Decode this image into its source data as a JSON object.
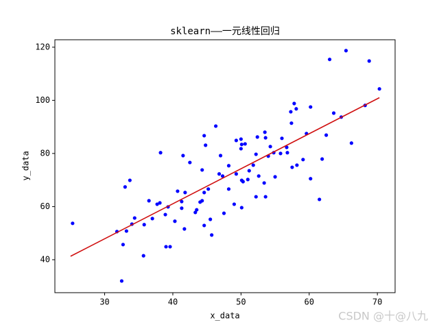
{
  "chart_data": {
    "type": "scatter",
    "title": "sklearn——一元线性回归",
    "x_label": "x_data",
    "y_label": "y_data",
    "xlim": [
      22.7,
      72.6
    ],
    "ylim": [
      27.6,
      122.8
    ],
    "xticks": [
      30,
      40,
      50,
      60,
      70
    ],
    "yticks": [
      40,
      60,
      80,
      100,
      120
    ],
    "color": "#0000ff",
    "x": [
      25.3,
      31.8,
      32.5,
      32.7,
      33,
      33.2,
      33.7,
      34,
      34.4,
      35.7,
      35.8,
      36.5,
      37,
      37.7,
      38.1,
      38.2,
      38.9,
      39,
      39.6,
      39.3,
      40.3,
      40.7,
      41.3,
      41.3,
      41.5,
      41.7,
      41.8,
      42.5,
      43.3,
      43.5,
      44,
      44.3,
      44.3,
      44.6,
      44.6,
      44.8,
      44.6,
      45.2,
      45.5,
      45.7,
      46.3,
      46.8,
      47,
      47.3,
      47.5,
      48.2,
      48.2,
      49,
      49.3,
      49.3,
      50,
      50,
      50.1,
      50.1,
      50.3,
      50.1,
      50.6,
      51,
      51.2,
      51.8,
      52.2,
      52.2,
      52.4,
      52.6,
      53.4,
      53.5,
      53.6,
      53.6,
      54,
      54.3,
      54.8,
      55,
      55.8,
      56,
      56.7,
      56.8,
      57.3,
      57.4,
      57.8,
      58.1,
      57.5,
      58.2,
      59.1,
      59.6,
      60.2,
      60.2,
      61.5,
      61.9,
      62.5,
      63,
      63.6,
      64.7,
      65.4,
      66.2,
      68.2,
      68.8,
      70.3
    ],
    "values": [
      53.7,
      50.6,
      32,
      45.7,
      67.4,
      50.8,
      69.9,
      53.4,
      55.7,
      41.5,
      53.2,
      62.2,
      55.5,
      60.9,
      61.4,
      80.3,
      57,
      44.9,
      44.9,
      59.9,
      54.5,
      65.8,
      59.4,
      61.9,
      79.2,
      51.6,
      65.3,
      76.6,
      57.8,
      58.8,
      61.7,
      62.2,
      73.8,
      65.3,
      86.7,
      83.1,
      52.9,
      66.6,
      55.2,
      49.3,
      90.3,
      72.3,
      79.2,
      71.5,
      57.5,
      75.4,
      66.6,
      60.9,
      72.3,
      84.9,
      85.4,
      81.8,
      83.4,
      69.9,
      69.4,
      59.6,
      83.6,
      70.2,
      73.5,
      75.6,
      79.7,
      63.7,
      86.2,
      71.5,
      68.9,
      88,
      85.9,
      63.7,
      79,
      82.6,
      80.3,
      71.2,
      80,
      85.7,
      82.3,
      80.3,
      95.7,
      91.4,
      98.8,
      96.8,
      74.8,
      75.6,
      77.7,
      87.5,
      97.5,
      70.5,
      62.7,
      77.9,
      86.9,
      115.4,
      95.2,
      93.7,
      118.7,
      83.9,
      98.1,
      114.8,
      104.3
    ],
    "fit": {
      "type": "line",
      "color": "#d01010",
      "x": [
        25,
        70.3
      ],
      "values": [
        41.3,
        101
      ]
    },
    "watermark": "CSDN @十@八九"
  }
}
